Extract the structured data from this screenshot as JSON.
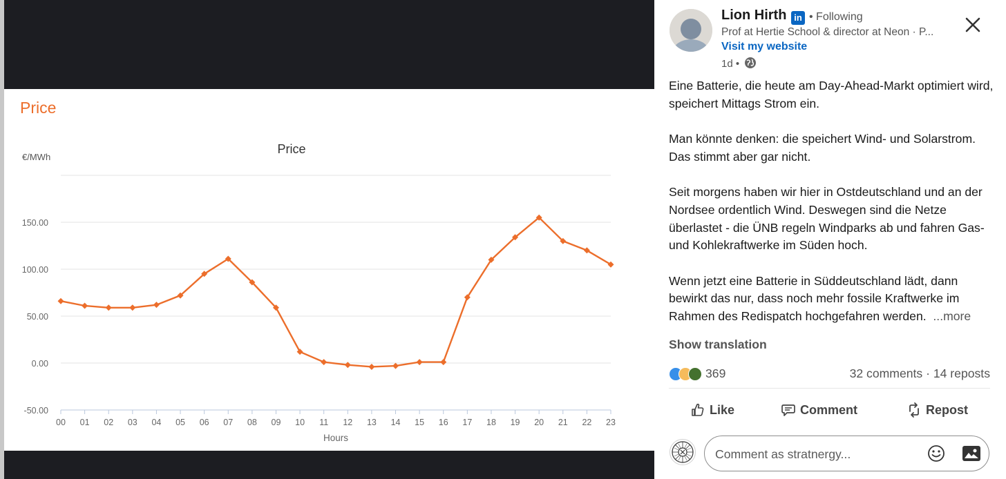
{
  "chart_card": {
    "heading": "Price"
  },
  "chart_data": {
    "type": "line",
    "title": "Price",
    "ylabel": "€/MWh",
    "xlabel": "Hours",
    "x": [
      "00",
      "01",
      "02",
      "03",
      "04",
      "05",
      "06",
      "07",
      "08",
      "09",
      "10",
      "11",
      "12",
      "13",
      "14",
      "15",
      "16",
      "17",
      "18",
      "19",
      "20",
      "21",
      "22",
      "23"
    ],
    "series": [
      {
        "values": [
          66,
          61,
          59,
          59,
          62,
          72,
          95,
          111,
          86,
          59,
          12,
          1,
          -2,
          -4,
          -3,
          1,
          1,
          70,
          110,
          134,
          155,
          130,
          120,
          105
        ]
      }
    ],
    "yticks": [
      "150.00",
      "100.00",
      "50.00",
      "0.00",
      "-50.00"
    ],
    "ylim": [
      -50,
      200
    ],
    "grid": true,
    "line_color": "#ec6e2b"
  },
  "post": {
    "author": "Lion Hirth",
    "badge": "in",
    "following": "• Following",
    "headline": "Prof at Hertie School & director at Neon · P...",
    "website": "Visit my website",
    "time": "1d •",
    "paragraphs": [
      "Eine Batterie, die heute am Day-Ahead-Markt optimiert wird, speichert Mittags Strom ein.",
      "Man könnte denken: die speichert Wind- und Solarstrom. Das stimmt aber gar nicht.",
      "Seit morgens haben wir hier in Ostdeutschland und an der Nordsee ordentlich Wind. Deswegen sind die Netze überlastet - die ÜNB regeln Windparks ab und fahren Gas- und Kohlekraftwerke im Süden hoch.",
      "Wenn jetzt eine Batterie in Süddeutschland lädt, dann bewirkt das nur, dass noch mehr fossile Kraftwerke im Rahmen des Redispatch hochgefahren werden."
    ],
    "more": "...more",
    "show_translation": "Show translation",
    "reaction_count": "369",
    "comments": "32 comments",
    "reposts": "14 reposts",
    "social_sep": " · "
  },
  "actions": {
    "like": "Like",
    "comment": "Comment",
    "repost": "Repost"
  },
  "comment_box": {
    "placeholder": "Comment as stratnergy..."
  },
  "colors": {
    "accent": "#0a66c2",
    "chart_orange": "#ec6e2b",
    "viewer_bg": "#1c1d22"
  },
  "icons": [
    "close-icon",
    "globe-icon",
    "like-icon",
    "comment-icon",
    "repost-icon",
    "emoji-icon",
    "image-icon",
    "linkedin-badge-icon"
  ]
}
